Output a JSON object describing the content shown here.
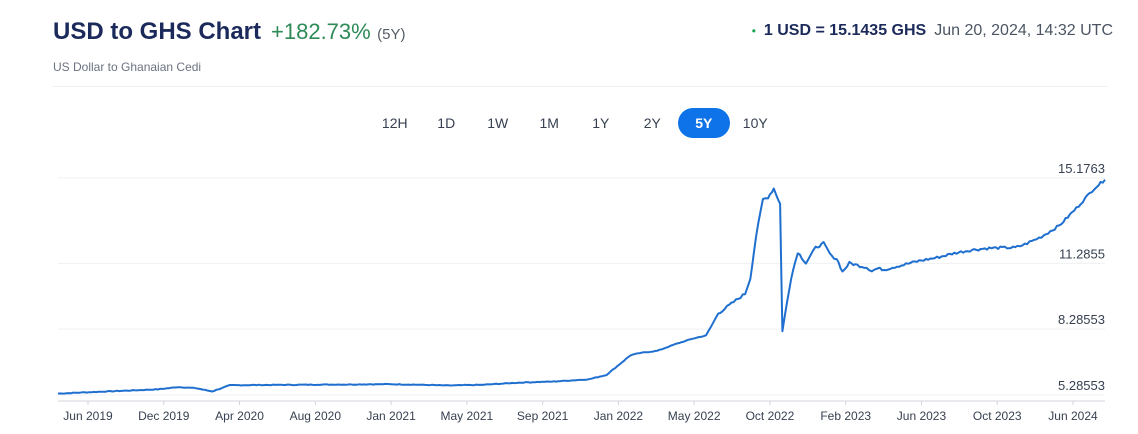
{
  "header": {
    "title": "USD to GHS Chart",
    "change": "+182.73%",
    "period": "(5Y)",
    "rate_dot": "•",
    "rate_value": "1 USD = 15.1435 GHS",
    "rate_time": "Jun 20, 2024, 14:32 UTC",
    "subtitle": "US Dollar to Ghanaian Cedi"
  },
  "tabs": [
    {
      "label": "12H",
      "active": false
    },
    {
      "label": "1D",
      "active": false
    },
    {
      "label": "1W",
      "active": false
    },
    {
      "label": "1M",
      "active": false
    },
    {
      "label": "1Y",
      "active": false
    },
    {
      "label": "2Y",
      "active": false
    },
    {
      "label": "5Y",
      "active": true
    },
    {
      "label": "10Y",
      "active": false
    }
  ],
  "colors": {
    "line": "#1f6fcf",
    "accent": "#0e73e8",
    "positive": "#2e8b57",
    "title": "#1b2a5a",
    "grid": "#eef0f3"
  },
  "chart_data": {
    "type": "line",
    "title": "USD to GHS Chart",
    "xlabel": "",
    "ylabel": "",
    "y_ticks": [
      "15.1763",
      "11.2855",
      "8.28553",
      "5.28553"
    ],
    "x_ticks": [
      "Jun 2019",
      "Dec 2019",
      "Apr 2020",
      "Aug 2020",
      "Jan 2021",
      "May 2021",
      "Sep 2021",
      "Jan 2022",
      "May 2022",
      "Oct 2022",
      "Feb 2023",
      "Jun 2023",
      "Oct 2023",
      "Jun 2024"
    ],
    "ylim": [
      5.28553,
      15.1763
    ],
    "x_range": [
      "2019-06-20",
      "2024-06-20"
    ],
    "grid": true,
    "legend": "none",
    "series": [
      {
        "x": [
          "2019-06-20",
          "2019-08-01",
          "2019-09-15",
          "2019-11-01",
          "2019-12-15",
          "2020-01-15",
          "2020-02-15",
          "2020-03-15",
          "2020-04-15",
          "2020-06-01",
          "2020-08-01",
          "2020-10-01",
          "2020-12-01",
          "2021-01-15",
          "2021-03-01",
          "2021-05-01",
          "2021-07-01",
          "2021-09-01",
          "2021-11-01",
          "2022-01-01",
          "2022-02-01",
          "2022-02-20",
          "2022-03-15",
          "2022-04-01",
          "2022-05-01",
          "2022-06-01",
          "2022-07-01",
          "2022-07-25",
          "2022-08-15",
          "2022-09-15",
          "2022-10-01",
          "2022-10-10",
          "2022-10-20",
          "2022-11-01",
          "2022-11-10",
          "2022-11-20",
          "2022-12-01",
          "2022-12-05",
          "2022-12-10",
          "2022-12-20",
          "2023-01-01",
          "2023-01-15",
          "2023-02-01",
          "2023-02-15",
          "2023-03-01",
          "2023-03-10",
          "2023-03-20",
          "2023-04-01",
          "2023-04-15",
          "2023-05-01",
          "2023-05-10",
          "2023-05-20",
          "2023-06-01",
          "2023-06-15",
          "2023-07-01",
          "2023-08-01",
          "2023-09-01",
          "2023-10-01",
          "2023-11-01",
          "2023-12-01",
          "2024-01-01",
          "2024-01-15",
          "2024-02-01",
          "2024-03-01",
          "2024-04-01",
          "2024-05-01",
          "2024-06-01",
          "2024-06-20"
        ],
        "values": [
          5.35,
          5.4,
          5.45,
          5.5,
          5.55,
          5.65,
          5.6,
          5.45,
          5.73,
          5.74,
          5.75,
          5.76,
          5.77,
          5.78,
          5.76,
          5.72,
          5.75,
          5.85,
          5.9,
          6.0,
          6.2,
          6.6,
          7.1,
          7.2,
          7.3,
          7.6,
          7.85,
          8.0,
          9.0,
          9.6,
          9.9,
          10.6,
          12.5,
          14.2,
          14.3,
          14.7,
          14.0,
          8.2,
          9.0,
          10.6,
          11.8,
          11.3,
          12.0,
          12.2,
          11.6,
          11.5,
          10.9,
          11.3,
          11.2,
          11.1,
          10.95,
          11.05,
          11.0,
          11.1,
          11.2,
          11.4,
          11.55,
          11.75,
          11.9,
          11.98,
          12.0,
          12.0,
          12.15,
          12.5,
          13.0,
          13.8,
          14.7,
          15.1
        ]
      }
    ]
  }
}
